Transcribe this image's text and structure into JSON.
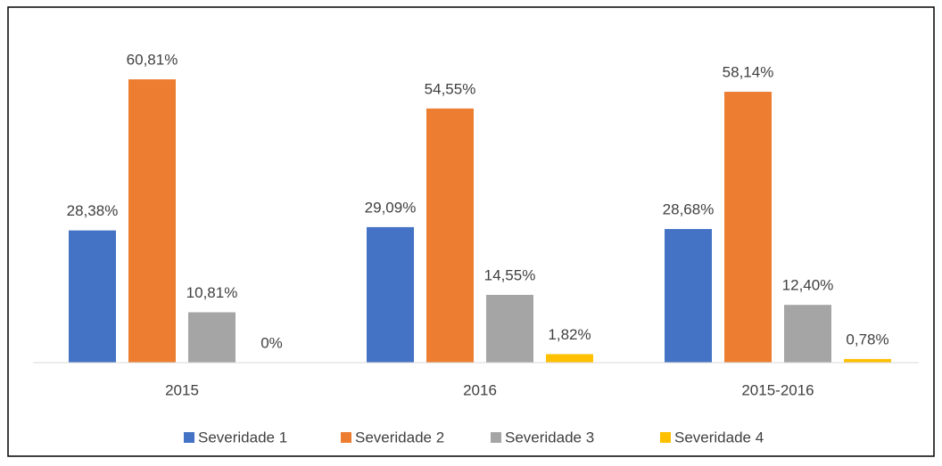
{
  "chart_data": {
    "type": "bar",
    "categories": [
      "2015",
      "2016",
      "2015-2016"
    ],
    "series": [
      {
        "name": "Severidade 1",
        "color": "#4472c4",
        "values": [
          28.38,
          29.09,
          28.68
        ],
        "value_labels": [
          "28,38%",
          "29,09%",
          "28,68%"
        ]
      },
      {
        "name": "Severidade 2",
        "color": "#ed7d31",
        "values": [
          60.81,
          54.55,
          58.14
        ],
        "value_labels": [
          "60,81%",
          "54,55%",
          "58,14%"
        ]
      },
      {
        "name": "Severidade 3",
        "color": "#a5a5a5",
        "values": [
          10.81,
          14.55,
          12.4
        ],
        "value_labels": [
          "10,81%",
          "14,55%",
          "12,40%"
        ]
      },
      {
        "name": "Severidade 4",
        "color": "#ffc000",
        "values": [
          0,
          1.82,
          0.78
        ],
        "value_labels": [
          "0%",
          "1,82%",
          "0,78%"
        ]
      }
    ],
    "ylim": [
      0,
      70
    ],
    "legend": "bottom"
  }
}
